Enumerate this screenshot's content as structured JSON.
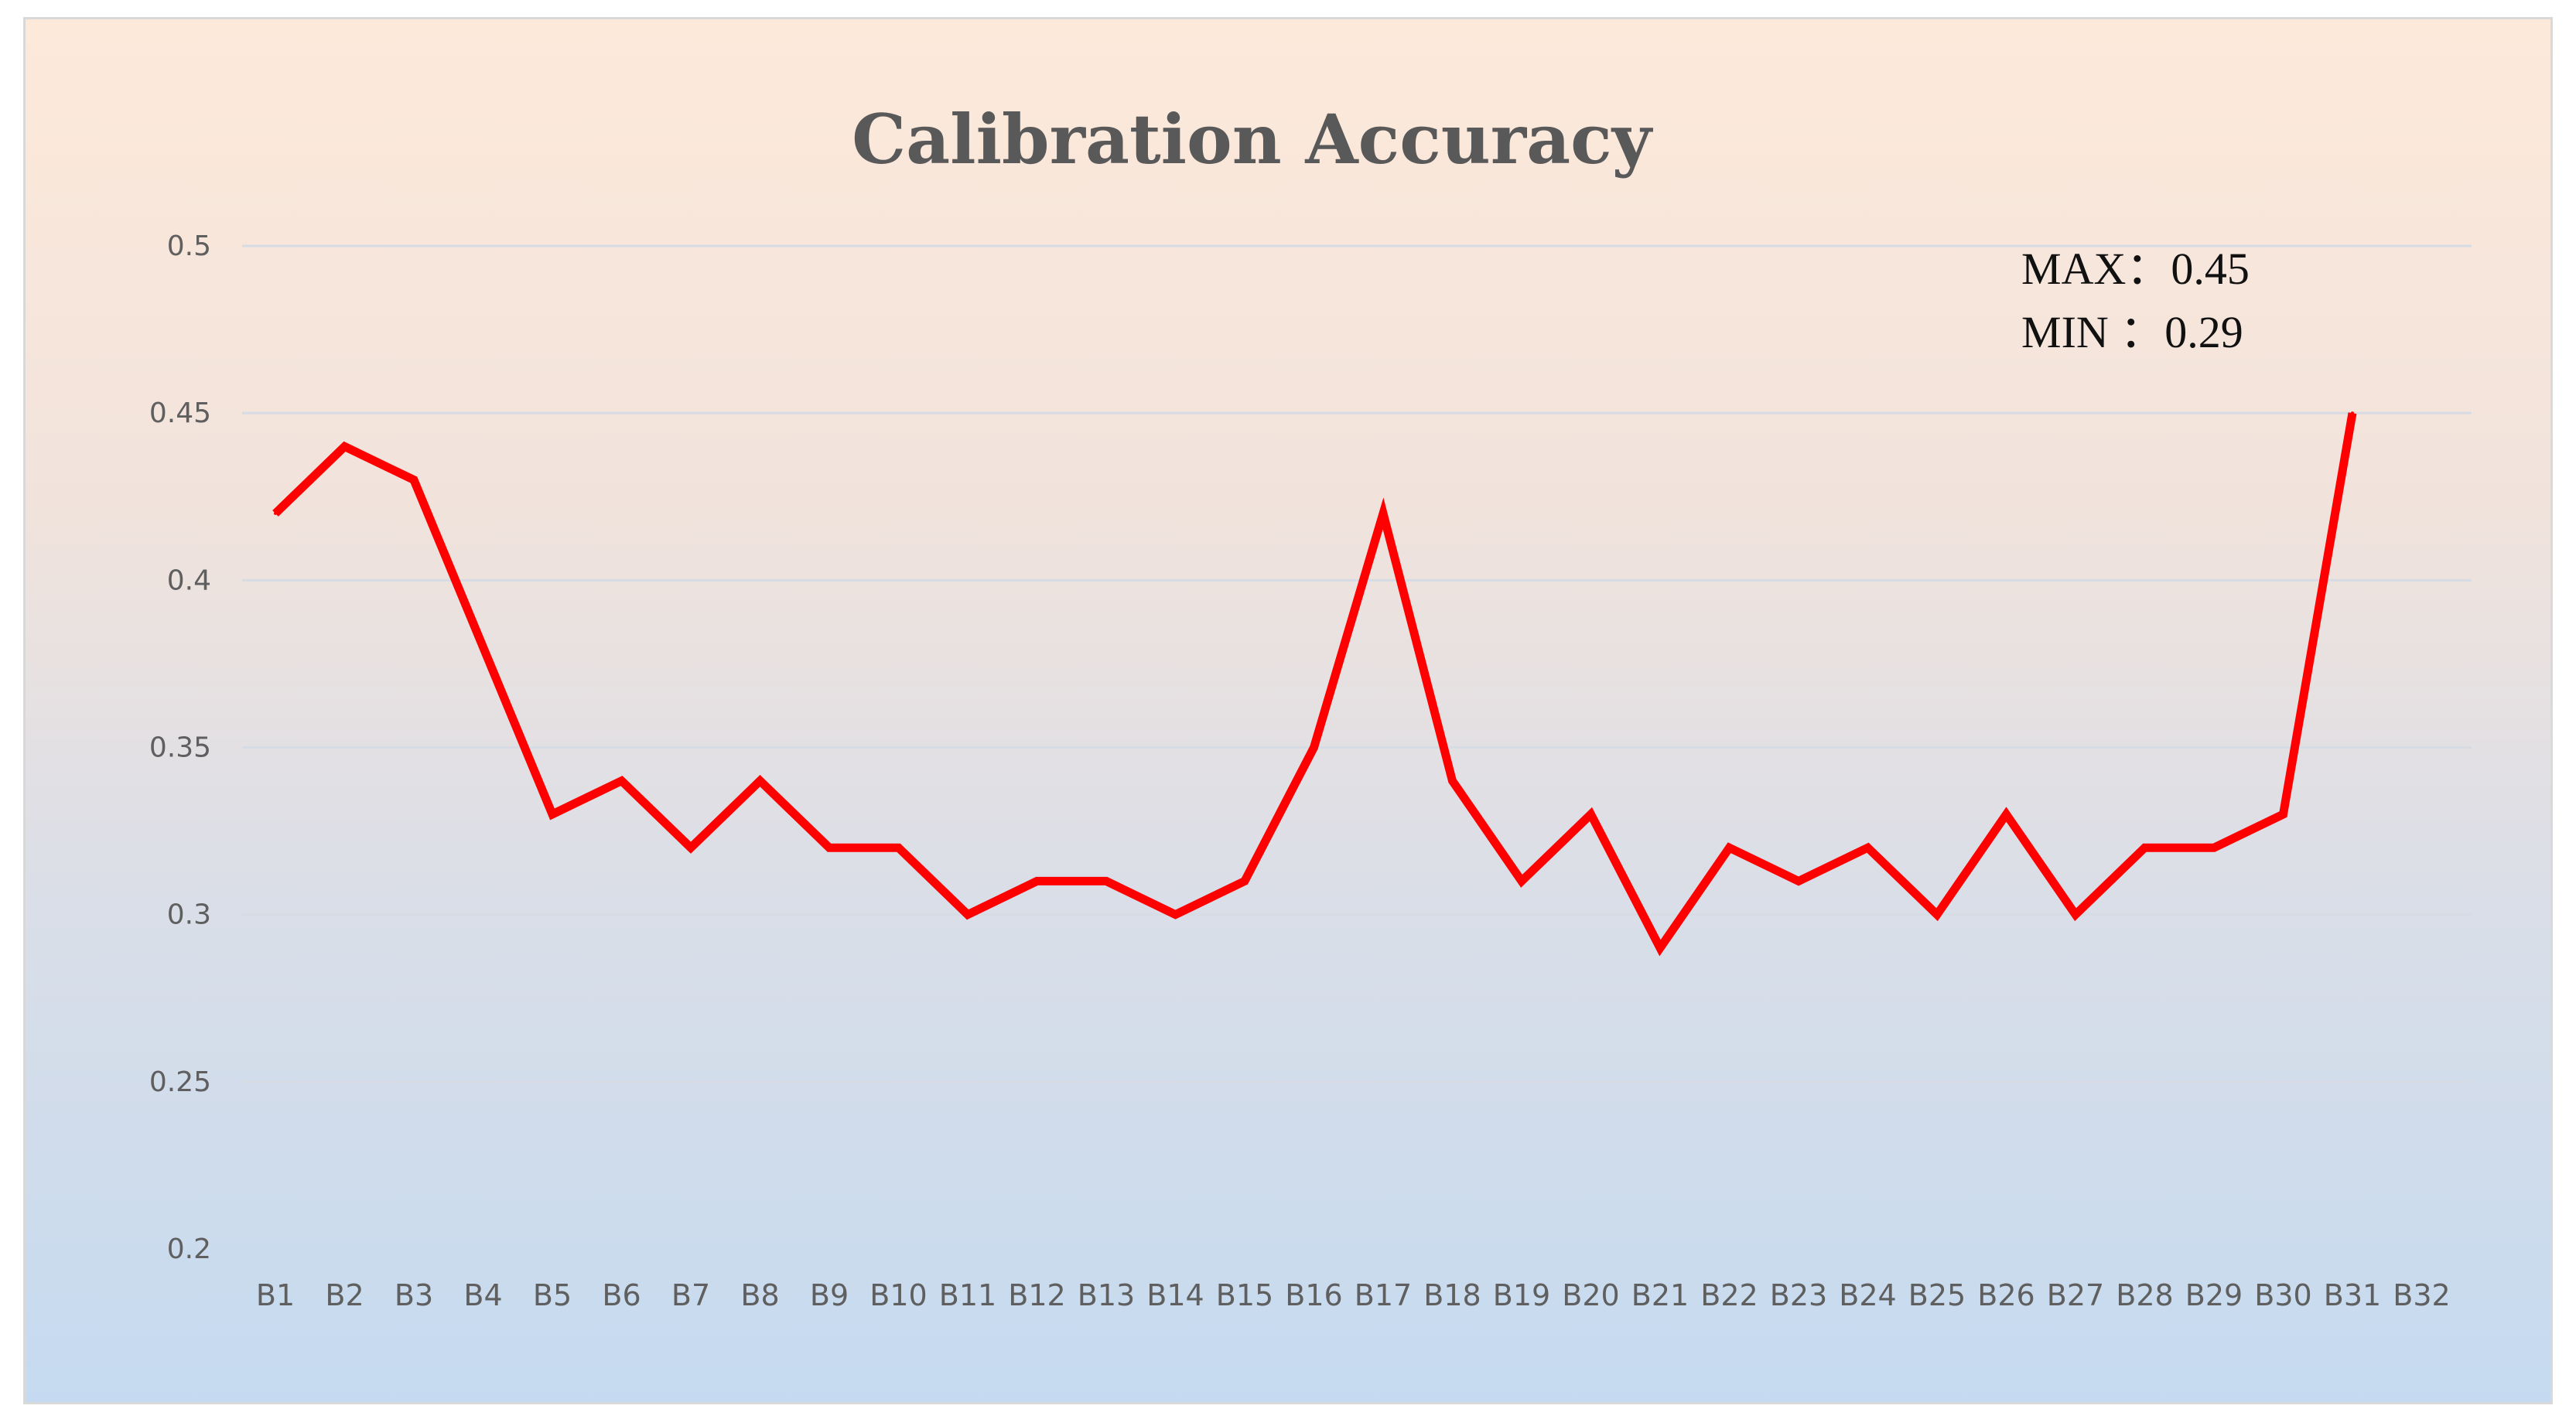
{
  "chart_data": {
    "type": "line",
    "title": "Calibration Accuracy",
    "xlabel": "",
    "ylabel": "",
    "ylim": [
      0.2,
      0.5
    ],
    "yticks": [
      "0.2",
      "0.25",
      "0.3",
      "0.35",
      "0.4",
      "0.45",
      "0.5"
    ],
    "grid": true,
    "legend": "none",
    "categories": [
      "B1",
      "B2",
      "B3",
      "B4",
      "B5",
      "B6",
      "B7",
      "B8",
      "B9",
      "B10",
      "B11",
      "B12",
      "B13",
      "B14",
      "B15",
      "B16",
      "B17",
      "B18",
      "B19",
      "B20",
      "B21",
      "B22",
      "B23",
      "B24",
      "B25",
      "B26",
      "B27",
      "B28",
      "B29",
      "B30",
      "B31",
      "B32"
    ],
    "series": [
      {
        "color": "#ff0000",
        "values": [
          0.42,
          0.44,
          0.43,
          0.38,
          0.33,
          0.34,
          0.32,
          0.34,
          0.32,
          0.32,
          0.3,
          0.31,
          0.31,
          0.3,
          0.31,
          0.35,
          0.42,
          0.34,
          0.31,
          0.33,
          0.29,
          0.32,
          0.31,
          0.32,
          0.3,
          0.33,
          0.3,
          0.32,
          0.32,
          0.33,
          0.45,
          null
        ]
      }
    ],
    "annotations": [
      "MAX：0.45",
      "MIN ：0.29"
    ]
  }
}
